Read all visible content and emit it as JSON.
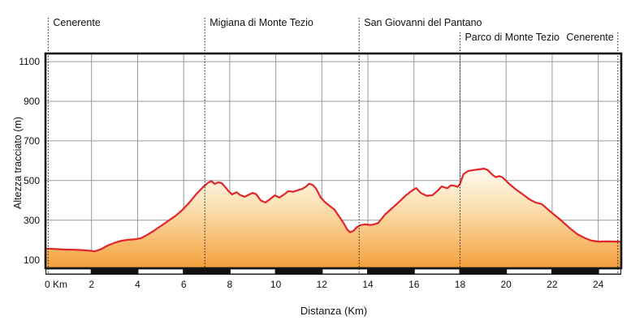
{
  "chart_data": {
    "type": "area",
    "title": "",
    "xlabel": "Distanza (Km)",
    "ylabel": "Altezza tracciato (m)",
    "xlim": [
      0,
      25
    ],
    "ylim": [
      0,
      1150
    ],
    "grid": true,
    "x_ticks": [
      {
        "km": 0,
        "label": "0 Km"
      },
      {
        "km": 2,
        "label": "2"
      },
      {
        "km": 4,
        "label": "4"
      },
      {
        "km": 6,
        "label": "6"
      },
      {
        "km": 8,
        "label": "8"
      },
      {
        "km": 10,
        "label": "10"
      },
      {
        "km": 12,
        "label": "12"
      },
      {
        "km": 14,
        "label": "14"
      },
      {
        "km": 16,
        "label": "16"
      },
      {
        "km": 18,
        "label": "18"
      },
      {
        "km": 20,
        "label": "20"
      },
      {
        "km": 22,
        "label": "22"
      },
      {
        "km": 24,
        "label": "24"
      }
    ],
    "y_ticks": [
      100,
      300,
      500,
      700,
      900,
      1100
    ],
    "waypoints": [
      {
        "label": "Cenerente",
        "km": 0.12,
        "row": 1,
        "align": "left"
      },
      {
        "label": "Migiana di Monte Tezio",
        "km": 6.92,
        "row": 1,
        "align": "left"
      },
      {
        "label": "San Giovanni del Pantano",
        "km": 13.62,
        "row": 1,
        "align": "left"
      },
      {
        "label": "Parco di Monte Tezio",
        "km": 18.0,
        "row": 2,
        "align": "left"
      },
      {
        "label": "Cenerente",
        "km": 24.85,
        "row": 2,
        "align": "right"
      }
    ],
    "scale_bar_white_segments_km": [
      [
        0,
        2
      ],
      [
        4,
        6
      ],
      [
        8,
        10
      ],
      [
        12,
        14
      ],
      [
        16,
        18
      ],
      [
        20,
        22
      ],
      [
        24,
        25
      ]
    ],
    "profile_km_m": [
      [
        0,
        157
      ],
      [
        0.4,
        155
      ],
      [
        0.8,
        152
      ],
      [
        1.2,
        151
      ],
      [
        1.6,
        149
      ],
      [
        1.9,
        146
      ],
      [
        2.15,
        143
      ],
      [
        2.4,
        153
      ],
      [
        2.7,
        172
      ],
      [
        3.0,
        186
      ],
      [
        3.3,
        196
      ],
      [
        3.6,
        201
      ],
      [
        3.9,
        204
      ],
      [
        4.15,
        209
      ],
      [
        4.45,
        228
      ],
      [
        4.75,
        250
      ],
      [
        5.05,
        274
      ],
      [
        5.35,
        298
      ],
      [
        5.65,
        322
      ],
      [
        5.95,
        352
      ],
      [
        6.25,
        390
      ],
      [
        6.55,
        432
      ],
      [
        6.85,
        468
      ],
      [
        7.05,
        488
      ],
      [
        7.2,
        497
      ],
      [
        7.35,
        483
      ],
      [
        7.5,
        491
      ],
      [
        7.65,
        487
      ],
      [
        7.8,
        468
      ],
      [
        7.95,
        446
      ],
      [
        8.1,
        430
      ],
      [
        8.3,
        441
      ],
      [
        8.45,
        427
      ],
      [
        8.65,
        418
      ],
      [
        8.8,
        427
      ],
      [
        9.0,
        438
      ],
      [
        9.15,
        431
      ],
      [
        9.35,
        399
      ],
      [
        9.55,
        389
      ],
      [
        9.75,
        406
      ],
      [
        9.95,
        425
      ],
      [
        10.15,
        414
      ],
      [
        10.35,
        429
      ],
      [
        10.55,
        447
      ],
      [
        10.75,
        443
      ],
      [
        10.95,
        451
      ],
      [
        11.15,
        458
      ],
      [
        11.3,
        469
      ],
      [
        11.45,
        484
      ],
      [
        11.6,
        478
      ],
      [
        11.75,
        460
      ],
      [
        11.95,
        414
      ],
      [
        12.15,
        389
      ],
      [
        12.35,
        371
      ],
      [
        12.55,
        353
      ],
      [
        12.75,
        319
      ],
      [
        12.95,
        284
      ],
      [
        13.1,
        253
      ],
      [
        13.22,
        239
      ],
      [
        13.38,
        247
      ],
      [
        13.52,
        265
      ],
      [
        13.68,
        275
      ],
      [
        13.88,
        279
      ],
      [
        14.08,
        276
      ],
      [
        14.25,
        278
      ],
      [
        14.45,
        286
      ],
      [
        14.75,
        330
      ],
      [
        15.05,
        360
      ],
      [
        15.35,
        392
      ],
      [
        15.65,
        425
      ],
      [
        15.95,
        452
      ],
      [
        16.1,
        462
      ],
      [
        16.3,
        437
      ],
      [
        16.55,
        423
      ],
      [
        16.8,
        426
      ],
      [
        17.05,
        451
      ],
      [
        17.2,
        470
      ],
      [
        17.45,
        461
      ],
      [
        17.6,
        476
      ],
      [
        17.75,
        474
      ],
      [
        17.9,
        468
      ],
      [
        18.0,
        484
      ],
      [
        18.15,
        532
      ],
      [
        18.35,
        548
      ],
      [
        18.6,
        553
      ],
      [
        18.85,
        557
      ],
      [
        19.05,
        560
      ],
      [
        19.2,
        553
      ],
      [
        19.4,
        530
      ],
      [
        19.55,
        517
      ],
      [
        19.7,
        522
      ],
      [
        19.85,
        516
      ],
      [
        20.1,
        487
      ],
      [
        20.4,
        458
      ],
      [
        20.7,
        432
      ],
      [
        21.0,
        406
      ],
      [
        21.25,
        391
      ],
      [
        21.55,
        381
      ],
      [
        21.95,
        341
      ],
      [
        22.35,
        303
      ],
      [
        22.75,
        261
      ],
      [
        23.1,
        229
      ],
      [
        23.4,
        211
      ],
      [
        23.7,
        197
      ],
      [
        24.0,
        192
      ],
      [
        24.4,
        193
      ],
      [
        24.75,
        192
      ],
      [
        25,
        192
      ]
    ],
    "colors": {
      "line": "#e2262a",
      "fill_top": "#fefaf0",
      "fill_mid": "#fbe0b2",
      "fill_bottom": "#f4a03c",
      "grid": "#9a9a9a",
      "axis": "#161616",
      "text": "#111111",
      "scale_bar_black": "#111111",
      "scale_bar_white": "#ffffff"
    }
  }
}
